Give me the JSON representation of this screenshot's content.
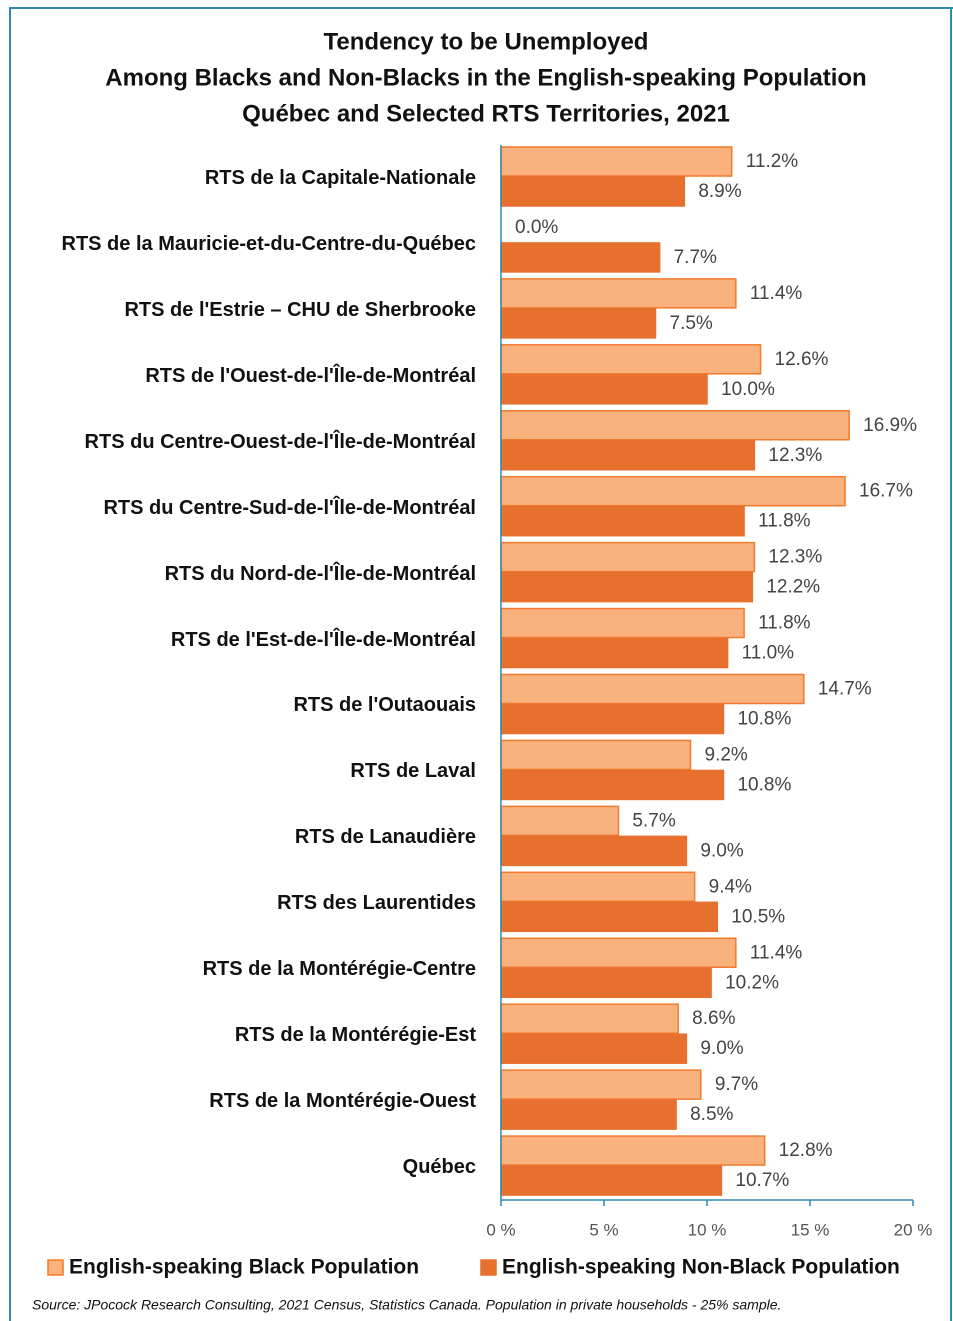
{
  "chart_data": {
    "type": "bar",
    "orientation": "horizontal",
    "title": [
      "Tendency to be Unemployed",
      "Among Blacks and Non-Blacks in the English-speaking Population",
      "Québec and Selected RTS Territories, 2021"
    ],
    "categories": [
      "RTS de la Capitale-Nationale",
      "RTS de la Mauricie-et-du-Centre-du-Québec",
      "RTS de l'Estrie – CHU de Sherbrooke",
      "RTS de l'Ouest-de-l'Île-de-Montréal",
      "RTS du Centre-Ouest-de-l'Île-de-Montréal",
      "RTS du Centre-Sud-de-l'Île-de-Montréal",
      "RTS du Nord-de-l'Île-de-Montréal",
      "RTS de l'Est-de-l'Île-de-Montréal",
      "RTS de l'Outaouais",
      "RTS de Laval",
      "RTS de Lanaudière",
      "RTS des Laurentides",
      "RTS de la Montérégie-Centre",
      "RTS de la Montérégie-Est",
      "RTS de la Montérégie-Ouest",
      "Québec"
    ],
    "series": [
      {
        "name": "English-speaking Black Population",
        "color": "#f9b27e",
        "edge": "#f07b2c",
        "values": [
          11.2,
          0.0,
          11.4,
          12.6,
          16.9,
          16.7,
          12.3,
          11.8,
          14.7,
          9.2,
          5.7,
          9.4,
          11.4,
          8.6,
          9.7,
          12.8
        ],
        "value_labels": [
          "11.2%",
          "0.0%",
          "11.4%",
          "12.6%",
          "16.9%",
          "16.7%",
          "12.3%",
          "11.8%",
          "14.7%",
          "9.2%",
          "5.7%",
          "9.4%",
          "11.4%",
          "8.6%",
          "9.7%",
          "12.8%"
        ]
      },
      {
        "name": "English-speaking Non-Black Population",
        "color": "#e8702e",
        "edge": "#e8702e",
        "values": [
          8.9,
          7.7,
          7.5,
          10.0,
          12.3,
          11.8,
          12.2,
          11.0,
          10.8,
          10.8,
          9.0,
          10.5,
          10.2,
          9.0,
          8.5,
          10.7
        ],
        "value_labels": [
          "8.9%",
          "7.7%",
          "7.5%",
          "10.0%",
          "12.3%",
          "11.8%",
          "12.2%",
          "11.0%",
          "10.8%",
          "10.8%",
          "9.0%",
          "10.5%",
          "10.2%",
          "9.0%",
          "8.5%",
          "10.7%"
        ]
      }
    ],
    "xlim": [
      0,
      20
    ],
    "xticks": [
      {
        "value": 0,
        "label": "0 %"
      },
      {
        "value": 5,
        "label": "5 %"
      },
      {
        "value": 10,
        "label": "10 %"
      },
      {
        "value": 15,
        "label": "15 %"
      },
      {
        "value": 20,
        "label": "20 %"
      }
    ],
    "legend": "bottom",
    "source": "Source: JPocock Research Consulting, 2021 Census, Statistics Canada. Population in private households - 25% sample."
  }
}
